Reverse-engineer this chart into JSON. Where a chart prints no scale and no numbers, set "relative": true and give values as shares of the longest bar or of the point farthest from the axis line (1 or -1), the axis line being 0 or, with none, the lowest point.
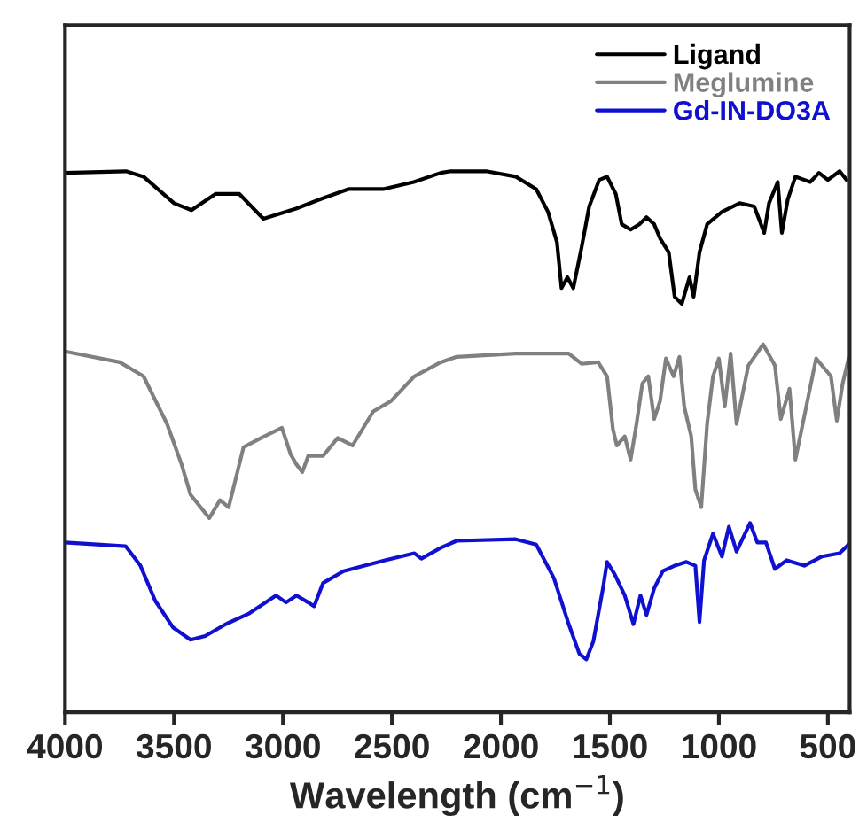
{
  "chart_data": {
    "type": "line",
    "relative": true,
    "xlabel": "Wavelength (cm$^{−1}$)",
    "xlim": [
      4000,
      400
    ],
    "xticks": [
      4000,
      3500,
      3000,
      2500,
      2000,
      1500,
      1000,
      500
    ],
    "tick_labels": "x",
    "legend": "top right",
    "grid": false,
    "marker": "none",
    "line_style": "solid",
    "series": [
      {
        "name": "Ligand",
        "color": "#000000",
        "x": [
          4000,
          3720,
          3640,
          3500,
          3420,
          3310,
          3200,
          3090,
          2940,
          2830,
          2700,
          2540,
          2400,
          2276,
          2230,
          2068,
          1932,
          1838,
          1784,
          1743,
          1722,
          1695,
          1668,
          1630,
          1595,
          1549,
          1513,
          1473,
          1446,
          1405,
          1365,
          1332,
          1297,
          1270,
          1230,
          1203,
          1170,
          1135,
          1116,
          1089,
          1054,
          986,
          905,
          838,
          792,
          770,
          730,
          711,
          684,
          649,
          581,
          541,
          500,
          446,
          414
        ],
        "values": [
          0.997,
          1,
          0.99,
          0.941,
          0.928,
          0.958,
          0.958,
          0.912,
          0.931,
          0.948,
          0.967,
          0.967,
          0.98,
          0.997,
          1,
          1,
          0.99,
          0.967,
          0.925,
          0.869,
          0.784,
          0.804,
          0.784,
          0.859,
          0.935,
          0.984,
          0.99,
          0.958,
          0.902,
          0.892,
          0.902,
          0.915,
          0.902,
          0.876,
          0.85,
          0.768,
          0.755,
          0.804,
          0.768,
          0.85,
          0.902,
          0.925,
          0.941,
          0.935,
          0.886,
          0.941,
          0.98,
          0.886,
          0.948,
          0.99,
          0.98,
          0.997,
          0.984,
          1,
          0.984
        ]
      },
      {
        "name": "Meglumine",
        "color": "#808080",
        "x": [
          4000,
          3749,
          3640,
          3532,
          3465,
          3424,
          3338,
          3289,
          3249,
          3181,
          3100,
          3005,
          2965,
          2938,
          2911,
          2884,
          2816,
          2749,
          2681,
          2586,
          2505,
          2397,
          2276,
          2203,
          1932,
          1689,
          1630,
          1554,
          1513,
          1486,
          1468,
          1432,
          1405,
          1378,
          1351,
          1324,
          1297,
          1270,
          1243,
          1208,
          1181,
          1159,
          1127,
          1108,
          1081,
          1054,
          1027,
          1000,
          973,
          946,
          919,
          865,
          797,
          743,
          716,
          676,
          649,
          594,
          554,
          486,
          459,
          432,
          405
        ],
        "values": [
          0.667,
          0.647,
          0.621,
          0.533,
          0.458,
          0.402,
          0.359,
          0.392,
          0.379,
          0.49,
          0.507,
          0.526,
          0.477,
          0.458,
          0.444,
          0.474,
          0.474,
          0.507,
          0.493,
          0.556,
          0.575,
          0.621,
          0.647,
          0.657,
          0.663,
          0.663,
          0.644,
          0.647,
          0.621,
          0.523,
          0.493,
          0.51,
          0.467,
          0.533,
          0.608,
          0.621,
          0.542,
          0.575,
          0.654,
          0.621,
          0.657,
          0.565,
          0.51,
          0.412,
          0.379,
          0.533,
          0.621,
          0.654,
          0.565,
          0.663,
          0.533,
          0.641,
          0.68,
          0.641,
          0.542,
          0.598,
          0.467,
          0.575,
          0.654,
          0.621,
          0.539,
          0.608,
          0.654
        ]
      },
      {
        "name": "Gd-IN-DO3A",
        "color": "#1010d0",
        "x": [
          4000,
          3722,
          3654,
          3586,
          3505,
          3424,
          3357,
          3262,
          3154,
          3032,
          2986,
          2938,
          2884,
          2857,
          2816,
          2722,
          2532,
          2397,
          2365,
          2276,
          2203,
          1932,
          1838,
          1757,
          1689,
          1640,
          1608,
          1576,
          1532,
          1513,
          1478,
          1432,
          1392,
          1360,
          1332,
          1297,
          1257,
          1203,
          1149,
          1108,
          1089,
          1068,
          1027,
          986,
          954,
          919,
          857,
          824,
          784,
          743,
          689,
          608,
          527,
          446,
          405
        ],
        "values": [
          0.314,
          0.307,
          0.271,
          0.206,
          0.157,
          0.134,
          0.141,
          0.163,
          0.183,
          0.216,
          0.203,
          0.216,
          0.203,
          0.196,
          0.239,
          0.261,
          0.281,
          0.294,
          0.284,
          0.304,
          0.317,
          0.32,
          0.31,
          0.248,
          0.163,
          0.108,
          0.098,
          0.131,
          0.229,
          0.278,
          0.255,
          0.216,
          0.163,
          0.216,
          0.18,
          0.229,
          0.261,
          0.271,
          0.278,
          0.271,
          0.167,
          0.281,
          0.33,
          0.288,
          0.343,
          0.297,
          0.35,
          0.314,
          0.314,
          0.265,
          0.281,
          0.271,
          0.288,
          0.294,
          0.31
        ]
      }
    ]
  }
}
